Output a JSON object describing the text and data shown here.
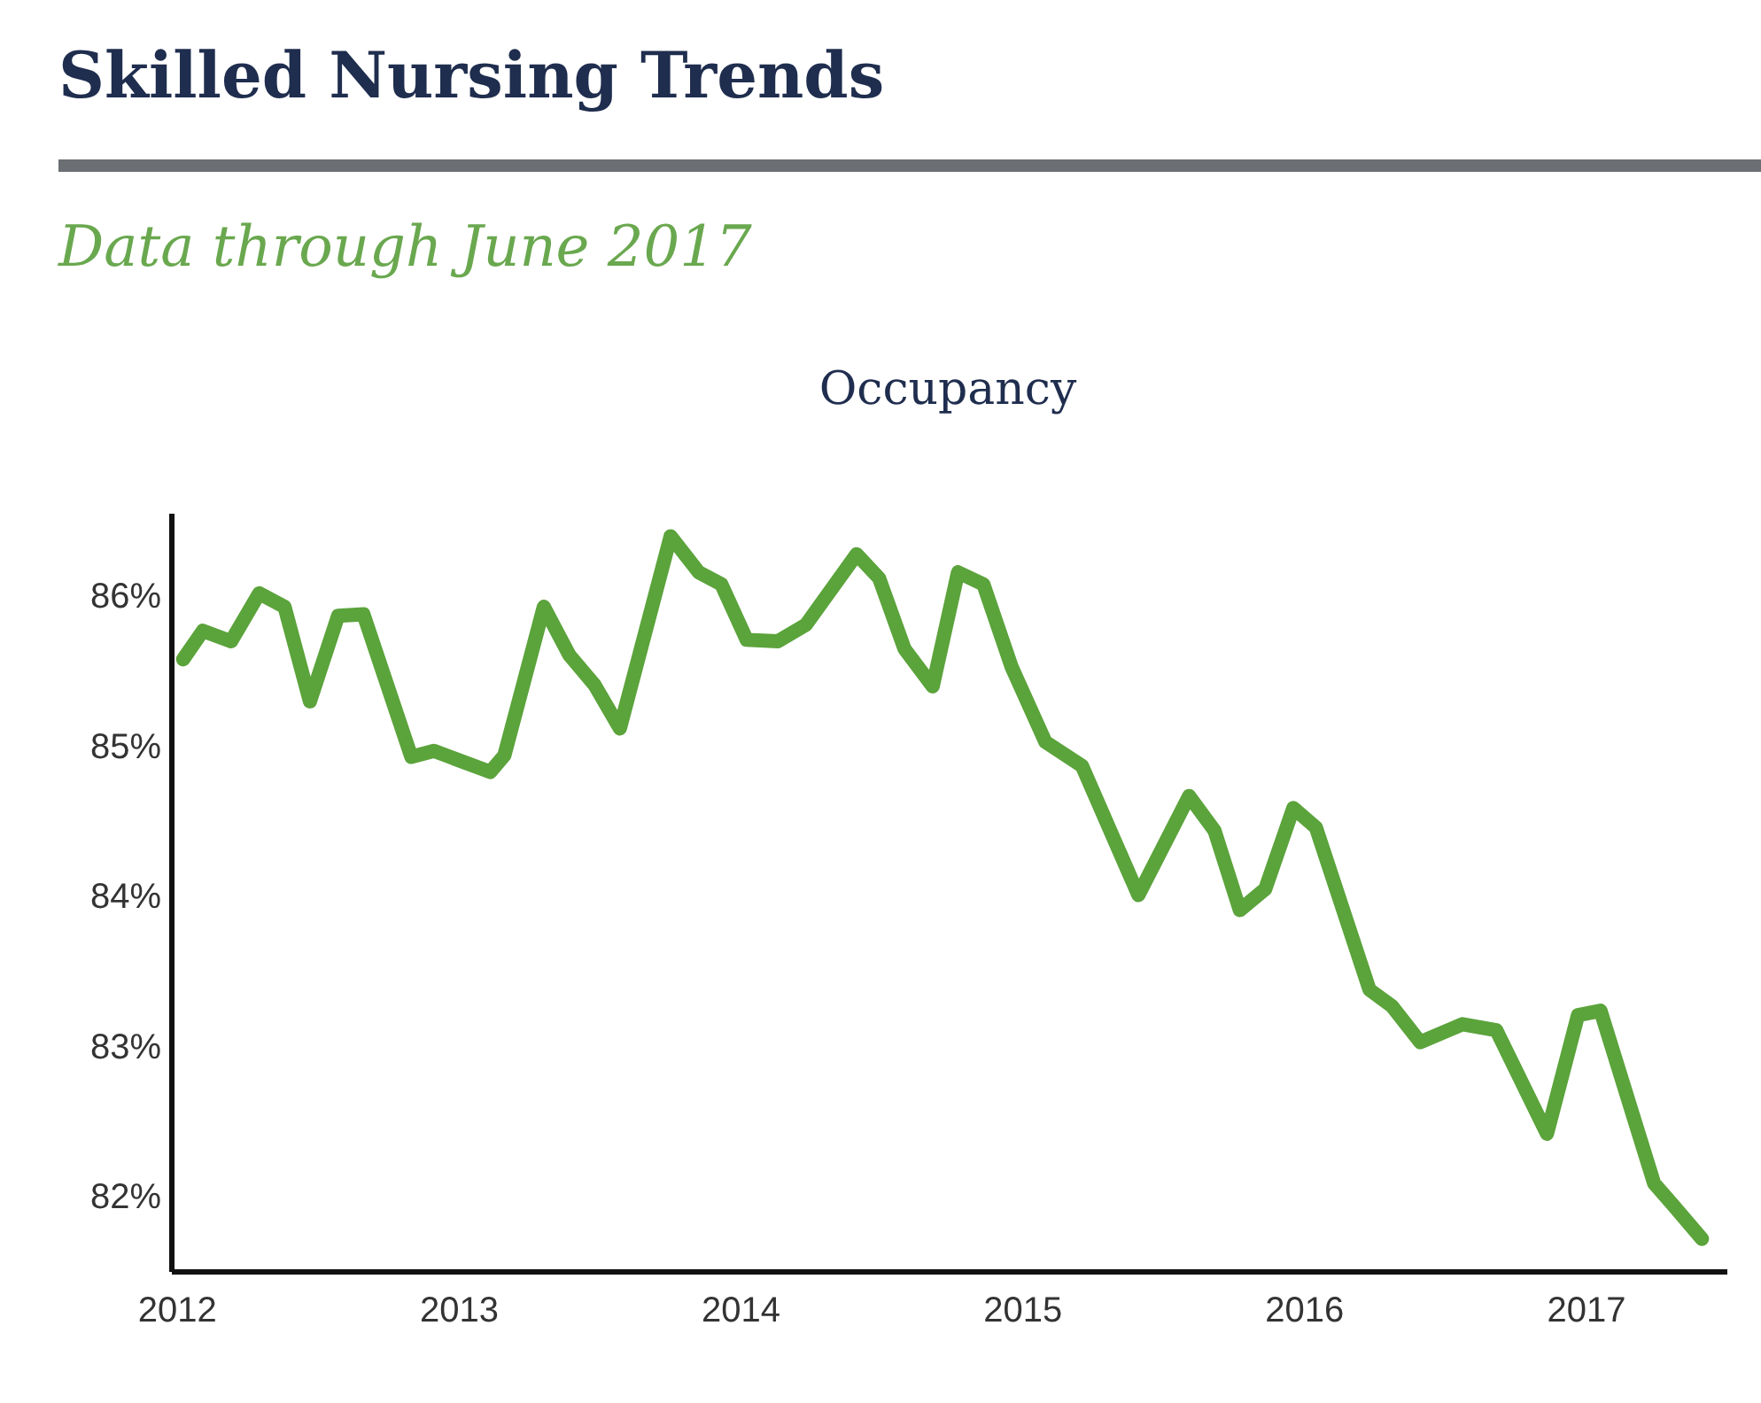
{
  "chart_data": {
    "type": "line",
    "title": "Skilled Nursing Trends",
    "subtitle": "Data through June 2017",
    "annotations": [
      "Occupancy"
    ],
    "x": [
      2012.02,
      2012.09,
      2012.19,
      2012.29,
      2012.38,
      2012.47,
      2012.57,
      2012.66,
      2012.83,
      2012.91,
      2013.11,
      2013.16,
      2013.3,
      2013.39,
      2013.48,
      2013.57,
      2013.75,
      2013.85,
      2013.93,
      2014.02,
      2014.13,
      2014.23,
      2014.41,
      2014.49,
      2014.58,
      2014.68,
      2014.77,
      2014.86,
      2014.96,
      2015.08,
      2015.21,
      2015.41,
      2015.59,
      2015.68,
      2015.77,
      2015.86,
      2015.96,
      2016.04,
      2016.23,
      2016.31,
      2016.41,
      2016.56,
      2016.68,
      2016.86,
      2016.97,
      2017.05,
      2017.24,
      2017.31,
      2017.41
    ],
    "series": [
      {
        "color": "#5ba33b",
        "values": [
          85.58,
          85.77,
          85.7,
          86.02,
          85.93,
          85.3,
          85.87,
          85.88,
          84.93,
          84.97,
          84.83,
          84.94,
          85.93,
          85.61,
          85.41,
          85.12,
          86.4,
          86.16,
          86.08,
          85.71,
          85.7,
          85.81,
          86.28,
          86.12,
          85.65,
          85.4,
          86.16,
          86.08,
          85.53,
          85.03,
          84.87,
          84.01,
          84.67,
          84.44,
          83.91,
          84.05,
          84.59,
          84.46,
          83.38,
          83.27,
          83.03,
          83.15,
          83.11,
          82.42,
          83.21,
          83.24,
          82.09,
          81.94,
          81.72
        ]
      }
    ],
    "xlim": [
      2011.98,
      2017.5
    ],
    "xticks": [
      2012,
      2013,
      2014,
      2015,
      2016,
      2017
    ],
    "ylim": [
      81.5,
      86.55
    ],
    "yticks": [
      {
        "value": 82,
        "label": "82%"
      },
      {
        "value": 83,
        "label": "83%"
      },
      {
        "value": 84,
        "label": "84%"
      },
      {
        "value": 85,
        "label": "85%"
      },
      {
        "value": 86,
        "label": "86%"
      }
    ],
    "grid": false,
    "marker": "none",
    "line_style": "solid"
  }
}
